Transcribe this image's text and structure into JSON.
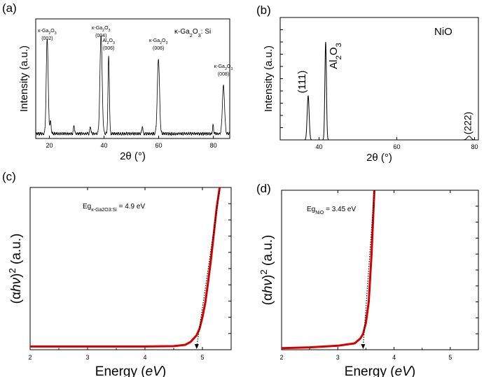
{
  "chart_data": [
    {
      "panel": "(a)",
      "type": "line",
      "xlabel": "2θ (°)",
      "ylabel": "Intensity (a.u.)",
      "xlim": [
        15,
        86
      ],
      "ylim": [
        0,
        100
      ],
      "xticks": [
        20,
        40,
        60,
        80
      ],
      "legend_text": "κ-Ga₂O₃: Si",
      "annotations": [
        {
          "line1": "κ-Ga₂O₃",
          "line2": "(002)",
          "x": 19.2,
          "y": 80
        },
        {
          "line1": "κ-Ga₂O₃",
          "line2": "(004)",
          "x": 38.9,
          "y": 82
        },
        {
          "line1": "Al₂O₃",
          "line2": "(006)",
          "x": 41.7,
          "y": 65
        },
        {
          "line1": "κ-Ga₂O₃",
          "line2": "(006)",
          "x": 59.9,
          "y": 63
        },
        {
          "line1": "κ-Ga₂O₃",
          "line2": "(008)",
          "x": 83.7,
          "y": 40
        }
      ],
      "baseline": 4,
      "peaks": [
        {
          "x": 19.2,
          "y": 80,
          "w": 0.35
        },
        {
          "x": 20.4,
          "y": 10,
          "w": 0.25
        },
        {
          "x": 29.0,
          "y": 7,
          "w": 0.2
        },
        {
          "x": 35.0,
          "y": 6,
          "w": 0.2
        },
        {
          "x": 38.9,
          "y": 82,
          "w": 0.4
        },
        {
          "x": 41.7,
          "y": 65,
          "w": 0.25
        },
        {
          "x": 54.0,
          "y": 6,
          "w": 0.2
        },
        {
          "x": 59.9,
          "y": 63,
          "w": 0.4
        },
        {
          "x": 79.9,
          "y": 7,
          "w": 0.2
        },
        {
          "x": 83.7,
          "y": 40,
          "w": 0.4
        }
      ]
    },
    {
      "panel": "(b)",
      "type": "line",
      "xlabel": "2θ (°)",
      "ylabel": "Intensity (a.u.)",
      "xlim": [
        30,
        81
      ],
      "ylim": [
        0,
        100
      ],
      "xticks": [
        40,
        60,
        80
      ],
      "legend_text": "NiO",
      "annotations": [
        {
          "text": "(111)",
          "x": 37.2,
          "y": 36
        },
        {
          "text": "Al₂O₃",
          "x": 41.7,
          "y": 80
        },
        {
          "text": "(222)",
          "x": 78.6,
          "y": 3
        }
      ],
      "baseline": 0,
      "peaks": [
        {
          "x": 37.2,
          "y": 36,
          "w": 0.25
        },
        {
          "x": 41.7,
          "y": 80,
          "w": 0.2
        },
        {
          "x": 78.6,
          "y": 3,
          "w": 0.5
        }
      ]
    },
    {
      "panel": "(c)",
      "type": "line",
      "xlabel": "Energy (eV)",
      "ylabel": "(αhν)² (a.u.)",
      "xlim": [
        2,
        5.5
      ],
      "ylim": [
        0,
        100
      ],
      "xticks": [
        2,
        3,
        4,
        5
      ],
      "annotation": {
        "prefix": "Eg",
        "sub": "κ-Ga₂O₃:Si",
        "value": "= 4.9 eV"
      },
      "bandgap_eV": 4.9,
      "series_color": "#d40000",
      "curve": [
        [
          2.0,
          2
        ],
        [
          4.0,
          2
        ],
        [
          4.5,
          2.2
        ],
        [
          4.7,
          3
        ],
        [
          4.8,
          5
        ],
        [
          4.9,
          9
        ],
        [
          4.95,
          13
        ],
        [
          5.0,
          20
        ],
        [
          5.05,
          29
        ],
        [
          5.1,
          42
        ],
        [
          5.15,
          56
        ],
        [
          5.2,
          72
        ],
        [
          5.25,
          88
        ],
        [
          5.3,
          100
        ]
      ],
      "tangent": [
        [
          4.9,
          0
        ],
        [
          5.3,
          98
        ]
      ]
    },
    {
      "panel": "(d)",
      "type": "line",
      "xlabel": "Energy (eV)",
      "ylabel": "(αhν)² (a.u.)",
      "xlim": [
        2,
        5.5
      ],
      "ylim": [
        0,
        100
      ],
      "xticks": [
        2,
        3,
        4,
        5
      ],
      "annotation": {
        "prefix": "Eg",
        "sub": "NiO",
        "value": "= 3.45 eV"
      },
      "bandgap_eV": 3.45,
      "series_color": "#d40000",
      "curve": [
        [
          2.0,
          1
        ],
        [
          2.5,
          1.5
        ],
        [
          3.0,
          2.5
        ],
        [
          3.3,
          4
        ],
        [
          3.4,
          7
        ],
        [
          3.45,
          10
        ],
        [
          3.5,
          17
        ],
        [
          3.55,
          30
        ],
        [
          3.6,
          60
        ],
        [
          3.65,
          100
        ]
      ],
      "tangent": [
        [
          3.45,
          0
        ],
        [
          3.65,
          100
        ]
      ]
    }
  ],
  "panels": {
    "a": "(a)",
    "b": "(b)",
    "c": "(c)",
    "d": "(d)"
  }
}
